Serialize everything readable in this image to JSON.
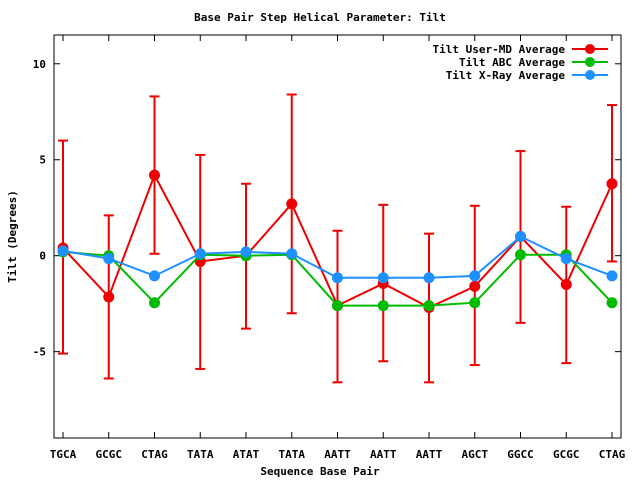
{
  "chart_data": {
    "type": "line",
    "title": "Base Pair Step Helical Parameter: Tilt",
    "xlabel": "Sequence Base Pair",
    "ylabel": "Tilt (Degrees)",
    "categories": [
      "TGCA",
      "GCGC",
      "CTAG",
      "TATA",
      "ATAT",
      "TATA",
      "AATT",
      "AATT",
      "AATT",
      "AGCT",
      "GGCC",
      "GCGC",
      "CTAG"
    ],
    "ylim": [
      -9.5,
      11.5
    ],
    "yticks": [
      -5,
      0,
      5,
      10
    ],
    "ytick_labels": [
      "-5",
      "0",
      "5",
      "10"
    ],
    "grid": false,
    "legend_position": "top-right",
    "series": [
      {
        "name": "Tilt User-MD Average",
        "color": "#ee0000",
        "values": [
          0.4,
          -2.15,
          4.2,
          -0.3,
          0.0,
          2.7,
          -2.6,
          -1.45,
          -2.7,
          -1.6,
          1.0,
          -1.5,
          3.75
        ],
        "error_low": [
          -5.1,
          -6.4,
          0.1,
          -5.9,
          -3.8,
          -3.0,
          -6.6,
          -5.5,
          -6.6,
          -5.7,
          -3.5,
          -5.6,
          -0.3
        ],
        "error_high": [
          6.0,
          2.1,
          8.3,
          5.25,
          3.75,
          8.4,
          1.3,
          2.65,
          1.15,
          2.6,
          5.45,
          2.55,
          7.85
        ]
      },
      {
        "name": "Tilt ABC Average",
        "color": "#00bb00",
        "values": [
          0.2,
          0.0,
          -2.45,
          0.05,
          0.0,
          0.05,
          -2.6,
          -2.6,
          -2.6,
          -2.45,
          0.05,
          0.05,
          -2.45
        ]
      },
      {
        "name": "Tilt X-Ray Average",
        "color": "#1e90ff",
        "values": [
          0.25,
          -0.15,
          -1.05,
          0.1,
          0.2,
          0.1,
          -1.15,
          -1.15,
          -1.15,
          -1.05,
          1.0,
          -0.15,
          -1.05
        ]
      }
    ]
  }
}
